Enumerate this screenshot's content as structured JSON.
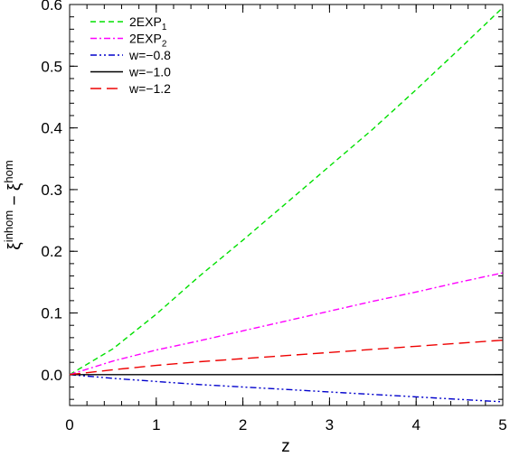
{
  "chart_data": {
    "type": "line",
    "xlabel": "z",
    "ylabel": {
      "main": "ξ",
      "sup1": "inhom",
      "mid": " − ξ",
      "sup2": "hom"
    },
    "xlim": [
      0,
      5
    ],
    "ylim": [
      -0.05,
      0.6
    ],
    "xticks": [
      0,
      1,
      2,
      3,
      4,
      5
    ],
    "yticks": [
      0.0,
      0.1,
      0.2,
      0.3,
      0.4,
      0.5,
      0.6
    ],
    "xtick_labels": [
      "0",
      "1",
      "2",
      "3",
      "4",
      "5"
    ],
    "ytick_labels": [
      "0.0",
      "0.1",
      "0.2",
      "0.3",
      "0.4",
      "0.5",
      "0.6"
    ],
    "grid": false,
    "legend_position": "top-left",
    "series": [
      {
        "name": "2EXP",
        "subscript": "1",
        "color": "#00e000",
        "dash": "dashed",
        "x": [
          0,
          0.5,
          1,
          1.5,
          2,
          2.5,
          3,
          3.5,
          4,
          4.5,
          5
        ],
        "y": [
          0,
          0.042,
          0.098,
          0.16,
          0.218,
          0.278,
          0.338,
          0.398,
          0.462,
          0.528,
          0.595
        ]
      },
      {
        "name": "2EXP",
        "subscript": "2",
        "color": "#ff00ff",
        "dash": "dash-dot",
        "x": [
          0,
          0.5,
          1,
          1.5,
          2,
          2.5,
          3,
          3.5,
          4,
          4.5,
          5
        ],
        "y": [
          0,
          0.022,
          0.04,
          0.055,
          0.071,
          0.087,
          0.103,
          0.119,
          0.134,
          0.15,
          0.165
        ]
      },
      {
        "name": "w=−0.8",
        "color": "#0000cc",
        "dash": "dash-dot-dot",
        "x": [
          0,
          0.5,
          1,
          1.5,
          2,
          2.5,
          3,
          3.5,
          4,
          4.5,
          5
        ],
        "y": [
          0,
          -0.006,
          -0.011,
          -0.016,
          -0.02,
          -0.024,
          -0.028,
          -0.032,
          -0.036,
          -0.04,
          -0.044
        ]
      },
      {
        "name": "w=−1.0",
        "color": "#000000",
        "dash": "solid",
        "x": [
          0,
          5
        ],
        "y": [
          0,
          0
        ]
      },
      {
        "name": "w=−1.2",
        "color": "#ee0000",
        "dash": "long-dash",
        "x": [
          0,
          0.5,
          1,
          1.5,
          2,
          2.5,
          3,
          3.5,
          4,
          4.5,
          5
        ],
        "y": [
          0,
          0.008,
          0.015,
          0.021,
          0.026,
          0.031,
          0.036,
          0.041,
          0.046,
          0.051,
          0.056
        ]
      }
    ]
  }
}
